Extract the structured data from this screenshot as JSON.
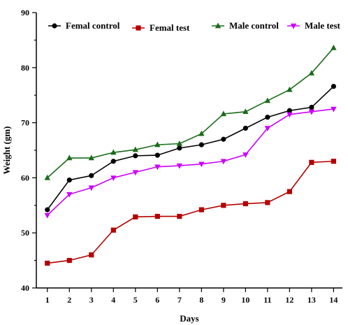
{
  "chart_data": {
    "type": "line",
    "xlabel": "Days",
    "ylabel": "Weight (gm)",
    "x": [
      1,
      2,
      3,
      4,
      5,
      6,
      7,
      8,
      9,
      10,
      11,
      12,
      13,
      14
    ],
    "xlim": [
      0.5,
      14.4
    ],
    "ylim": [
      40,
      90
    ],
    "yticks": [
      40,
      50,
      60,
      70,
      80,
      90
    ],
    "grid": false,
    "legend_position": "top",
    "series": [
      {
        "name": "Femal control",
        "color": "#000000",
        "marker": "circle",
        "values": [
          54.2,
          59.6,
          60.4,
          63.0,
          64.0,
          64.1,
          65.4,
          66.0,
          67.0,
          69.0,
          71.0,
          72.2,
          72.8,
          76.6
        ]
      },
      {
        "name": "Femal test",
        "color": "#b30000",
        "marker": "square",
        "values": [
          44.5,
          45.0,
          46.0,
          50.5,
          52.9,
          53.0,
          53.0,
          54.2,
          55.0,
          55.3,
          55.5,
          57.5,
          62.8,
          63.0
        ]
      },
      {
        "name": "Male control",
        "color": "#1a6b1a",
        "marker": "triangle-up",
        "values": [
          60.0,
          63.6,
          63.6,
          64.6,
          65.1,
          66.0,
          66.2,
          68.0,
          71.6,
          72.0,
          74.0,
          76.0,
          79.0,
          83.6
        ]
      },
      {
        "name": "Male test",
        "color": "#cc00ff",
        "marker": "triangle-down",
        "values": [
          53.2,
          57.0,
          58.2,
          60.0,
          61.0,
          62.0,
          62.2,
          62.5,
          63.0,
          64.2,
          69.0,
          71.5,
          72.0,
          72.5
        ]
      }
    ]
  }
}
